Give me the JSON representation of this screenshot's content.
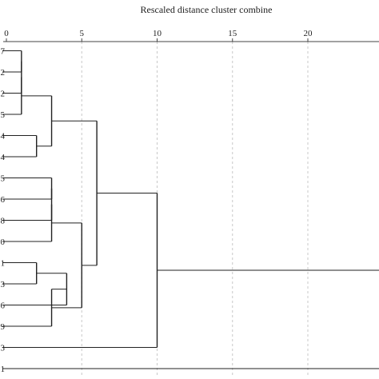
{
  "figure": {
    "title": "Rescaled distance cluster combine"
  },
  "chart_data": {
    "type": "dendrogram",
    "title": "Rescaled distance cluster combine",
    "xlim": [
      0,
      24
    ],
    "x_ticks": [
      0,
      5,
      10,
      15,
      20
    ],
    "x_tick_labels": [
      "0",
      "5",
      "10",
      "15",
      "20"
    ],
    "grid": "dashed vertical at ticks",
    "leaves": [
      {
        "label": "7"
      },
      {
        "label": "2"
      },
      {
        "label": "2"
      },
      {
        "label": "5"
      },
      {
        "label": "4"
      },
      {
        "label": "4"
      },
      {
        "label": "5"
      },
      {
        "label": "6"
      },
      {
        "label": "8"
      },
      {
        "label": "0"
      },
      {
        "label": "1"
      },
      {
        "label": "3"
      },
      {
        "label": "6"
      },
      {
        "label": "9"
      },
      {
        "label": "3"
      },
      {
        "label": "1"
      }
    ],
    "merges": [
      {
        "id": "m1",
        "left": 0,
        "right": 1,
        "distance": 1
      },
      {
        "id": "m2",
        "left": "m1",
        "right": 2,
        "distance": 1
      },
      {
        "id": "m3",
        "left": "m2",
        "right": 3,
        "distance": 1
      },
      {
        "id": "m4",
        "left": 4,
        "right": 5,
        "distance": 2
      },
      {
        "id": "m5",
        "left": "m3",
        "right": "m4",
        "distance": 3
      },
      {
        "id": "m6",
        "left": 6,
        "right": 7,
        "distance": 3
      },
      {
        "id": "m7",
        "left": "m6",
        "right": 8,
        "distance": 3
      },
      {
        "id": "m8",
        "left": "m7",
        "right": 9,
        "distance": 3
      },
      {
        "id": "m9",
        "left": 10,
        "right": 11,
        "distance": 2
      },
      {
        "id": "m10",
        "left": "m9",
        "right": 12,
        "distance": 4
      },
      {
        "id": "m11",
        "left": "m10",
        "right": 13,
        "distance": 3
      },
      {
        "id": "m12",
        "left": "m8",
        "right": "m11",
        "distance": 5
      },
      {
        "id": "m13",
        "left": "m5",
        "right": "m12",
        "distance": 6
      },
      {
        "id": "m14",
        "left": "m13",
        "right": 14,
        "distance": 10
      },
      {
        "id": "m15",
        "left": "m14",
        "right": 15,
        "distance": 25
      }
    ]
  }
}
